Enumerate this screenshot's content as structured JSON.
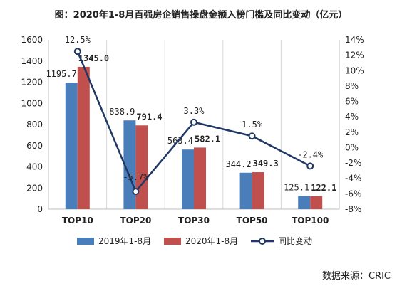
{
  "title": "图：2020年1-8月百强房企销售操盘金额入榜门槛及同比变动（亿元）",
  "source": "数据来源：CRIC",
  "chart_data": {
    "type": "bar",
    "categories": [
      "TOP10",
      "TOP20",
      "TOP30",
      "TOP50",
      "TOP100"
    ],
    "series": [
      {
        "name": "2019年1-8月",
        "type": "bar",
        "axis": "left",
        "color": "#4a7ebb",
        "values": [
          1195.7,
          838.9,
          563.4,
          344.2,
          125.1
        ],
        "labels": [
          "1195.7",
          "838.9",
          "563.4",
          "344.2",
          "125.1"
        ]
      },
      {
        "name": "2020年1-8月",
        "type": "bar",
        "axis": "left",
        "color": "#c0504d",
        "values": [
          1345.0,
          791.4,
          582.1,
          349.3,
          122.1
        ],
        "labels": [
          "1345.0",
          "791.4",
          "582.1",
          "349.3",
          "122.1"
        ]
      },
      {
        "name": "同比变动",
        "type": "line",
        "axis": "right",
        "color": "#1f3864",
        "values": [
          12.5,
          -5.7,
          3.3,
          1.5,
          -2.4
        ],
        "labels": [
          "12.5%",
          "-5.7%",
          "3.3%",
          "1.5%",
          "-2.4%"
        ]
      }
    ],
    "left_axis": {
      "min": 0,
      "max": 1600,
      "ticks": [
        "0",
        "200",
        "400",
        "600",
        "800",
        "1000",
        "1200",
        "1400",
        "1600"
      ]
    },
    "right_axis": {
      "min": -8,
      "max": 14,
      "ticks": [
        "-8%",
        "-6%",
        "-4%",
        "-2%",
        "0%",
        "2%",
        "4%",
        "6%",
        "8%",
        "10%",
        "12%",
        "14%"
      ]
    },
    "grid": "vertical category bands",
    "legend_position": "bottom"
  }
}
